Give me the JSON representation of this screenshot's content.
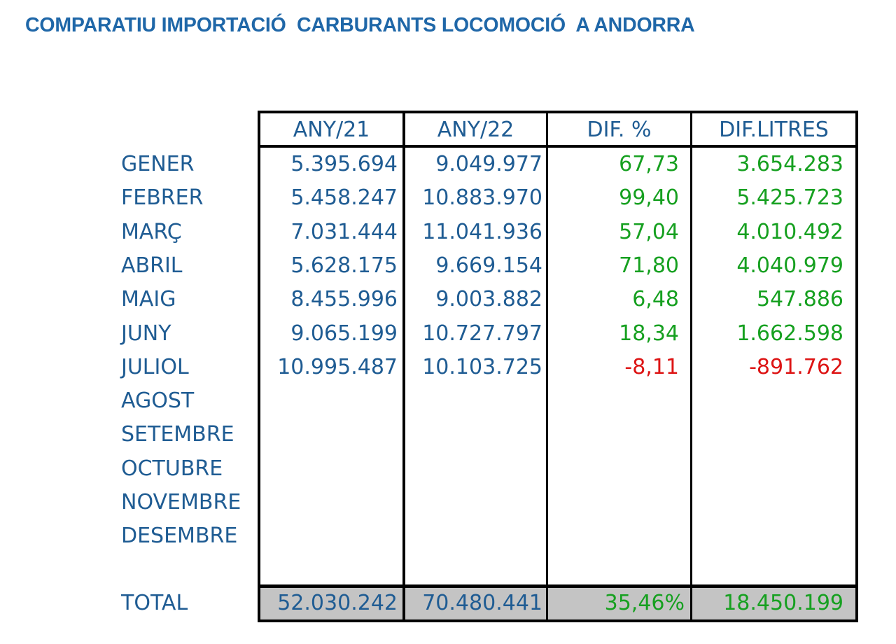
{
  "title": "COMPARATIU IMPORTACIÓ  CARBURANTS LOCOMOCIÓ  A ANDORRA",
  "columns": [
    "ANY/21",
    "ANY/22",
    "DIF. %",
    "DIF.LITRES"
  ],
  "months": [
    "GENER",
    "FEBRER",
    "MARÇ",
    "ABRIL",
    "MAIG",
    "JUNY",
    "JULIOL",
    "AGOST",
    "SETEMBRE",
    "OCTUBRE",
    "NOVEMBRE",
    "DESEMBRE"
  ],
  "rows": [
    {
      "any21": "5.395.694",
      "any22": "9.049.977",
      "dif_pct": "67,73",
      "dif_litres": "3.654.283",
      "sign": "positive"
    },
    {
      "any21": "5.458.247",
      "any22": "10.883.970",
      "dif_pct": "99,40",
      "dif_litres": "5.425.723",
      "sign": "positive"
    },
    {
      "any21": "7.031.444",
      "any22": "11.041.936",
      "dif_pct": "57,04",
      "dif_litres": "4.010.492",
      "sign": "positive"
    },
    {
      "any21": "5.628.175",
      "any22": "9.669.154",
      "dif_pct": "71,80",
      "dif_litres": "4.040.979",
      "sign": "positive"
    },
    {
      "any21": "8.455.996",
      "any22": "9.003.882",
      "dif_pct": "6,48",
      "dif_litres": "547.886",
      "sign": "positive"
    },
    {
      "any21": "9.065.199",
      "any22": "10.727.797",
      "dif_pct": "18,34",
      "dif_litres": "1.662.598",
      "sign": "positive"
    },
    {
      "any21": "10.995.487",
      "any22": "10.103.725",
      "dif_pct": "-8,11",
      "dif_litres": "-891.762",
      "sign": "negative"
    }
  ],
  "total": {
    "label": "TOTAL",
    "any21": "52.030.242",
    "any22": "70.480.441",
    "dif_pct": "35,46%",
    "dif_litres": "18.450.199"
  },
  "colors": {
    "title": "#1f67a8",
    "text": "#1f5c93",
    "positive": "#16a020",
    "negative": "#dd1414",
    "total_background": "#c4c4c4"
  }
}
